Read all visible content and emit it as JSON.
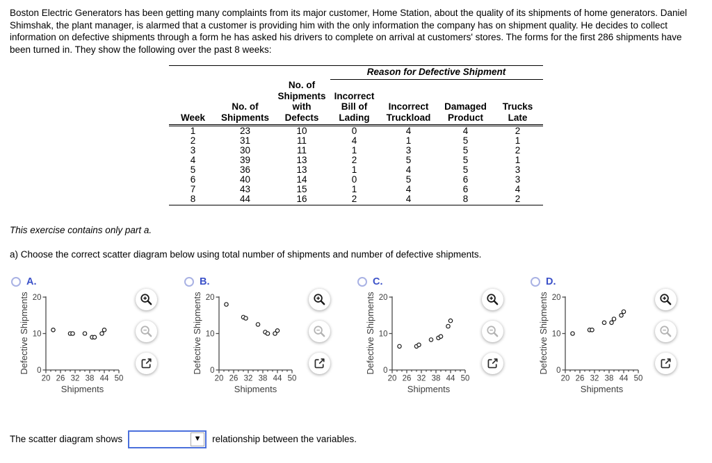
{
  "intro": "Boston Electric Generators has been getting many complaints from its major customer, Home Station, about the quality of its shipments of home generators. Daniel Shimshak, the plant manager, is alarmed that a customer is providing him with the only information the company has on shipment quality. He decides to collect information on defective shipments through a form he has asked his drivers to complete on arrival at customers' stores. The forms for the first 286 shipments have been turned in. They show the following over the past 8 weeks:",
  "table": {
    "span_header": "Reason for Defective Shipment",
    "col_headers": [
      "Week",
      "No. of\nShipments",
      "No. of\nShipments\nwith\nDefects",
      "Incorrect\nBill of\nLading",
      "Incorrect\nTruckload",
      "Damaged\nProduct",
      "Trucks\nLate"
    ],
    "rows": [
      [
        1,
        23,
        10,
        0,
        4,
        4,
        2
      ],
      [
        2,
        31,
        11,
        4,
        1,
        5,
        1
      ],
      [
        3,
        30,
        11,
        1,
        3,
        5,
        2
      ],
      [
        4,
        39,
        13,
        2,
        5,
        5,
        1
      ],
      [
        5,
        36,
        13,
        1,
        4,
        5,
        3
      ],
      [
        6,
        40,
        14,
        0,
        5,
        6,
        3
      ],
      [
        7,
        43,
        15,
        1,
        4,
        6,
        4
      ],
      [
        8,
        44,
        16,
        2,
        4,
        8,
        2
      ]
    ]
  },
  "exercise_note": "This exercise contains only part a.",
  "question_a": "a) Choose the correct scatter diagram below using total number of shipments and number of defective shipments.",
  "options": [
    {
      "label": "A."
    },
    {
      "label": "B."
    },
    {
      "label": "C."
    },
    {
      "label": "D."
    }
  ],
  "chart_data": [
    {
      "type": "scatter",
      "option": "A",
      "x": [
        23,
        30,
        31,
        36,
        39,
        40,
        43,
        44
      ],
      "y": [
        11,
        10,
        10,
        10,
        9,
        9,
        10,
        11
      ],
      "title": "",
      "xlabel": "Shipments",
      "ylabel": "Defective Shipments",
      "xlim": [
        20,
        50
      ],
      "ylim": [
        0,
        20
      ],
      "xticks": [
        20,
        26,
        32,
        38,
        44,
        50
      ],
      "yticks": [
        0,
        10,
        20
      ],
      "x_minor_step": 2,
      "grid": false,
      "marker": "open-circle"
    },
    {
      "type": "scatter",
      "option": "B",
      "x": [
        23,
        30,
        31,
        36,
        39,
        40,
        43,
        44
      ],
      "y": [
        18,
        14.5,
        14.2,
        12.5,
        10.4,
        10,
        10,
        10.8
      ],
      "title": "",
      "xlabel": "Shipments",
      "ylabel": "Defective Shipments",
      "xlim": [
        20,
        50
      ],
      "ylim": [
        0,
        20
      ],
      "xticks": [
        20,
        26,
        32,
        38,
        44,
        50
      ],
      "yticks": [
        0,
        10,
        20
      ],
      "x_minor_step": 2,
      "grid": false,
      "marker": "open-circle"
    },
    {
      "type": "scatter",
      "option": "C",
      "x": [
        23,
        30,
        31,
        36,
        39,
        40,
        43,
        44
      ],
      "y": [
        6.5,
        6.5,
        6.9,
        8.3,
        8.8,
        9.2,
        12,
        13.5
      ],
      "title": "",
      "xlabel": "Shipments",
      "ylabel": "Defective Shipments",
      "xlim": [
        20,
        50
      ],
      "ylim": [
        0,
        20
      ],
      "xticks": [
        20,
        26,
        32,
        38,
        44,
        50
      ],
      "yticks": [
        0,
        10,
        20
      ],
      "x_minor_step": 2,
      "grid": false,
      "marker": "open-circle"
    },
    {
      "type": "scatter",
      "option": "D",
      "x": [
        23,
        30,
        31,
        36,
        39,
        40,
        43,
        44
      ],
      "y": [
        10,
        11,
        11,
        13,
        13,
        14,
        15,
        16
      ],
      "title": "",
      "xlabel": "Shipments",
      "ylabel": "Defective Shipments",
      "xlim": [
        20,
        50
      ],
      "ylim": [
        0,
        20
      ],
      "xticks": [
        20,
        26,
        32,
        38,
        44,
        50
      ],
      "yticks": [
        0,
        10,
        20
      ],
      "x_minor_step": 2,
      "grid": false,
      "marker": "open-circle"
    }
  ],
  "chart_tools": [
    "zoom-in-icon",
    "zoom-out-icon",
    "open-in-new-icon"
  ],
  "answer": {
    "prefix": "The scatter diagram shows",
    "dropdown_value": "",
    "suffix": "relationship between the variables."
  },
  "colors": {
    "option_label": "#3a50c8",
    "radio_border": "#a9b2e4",
    "dropdown_border": "#4a6fdc",
    "axis": "#4a4a4a"
  }
}
